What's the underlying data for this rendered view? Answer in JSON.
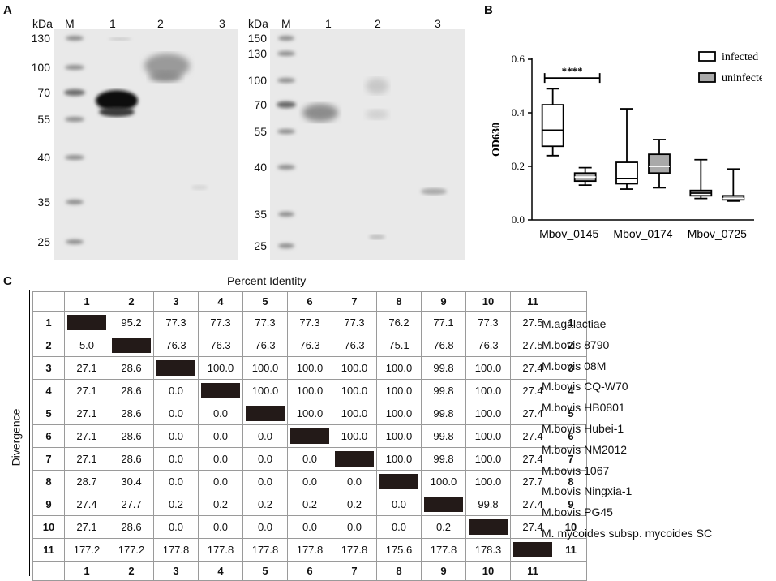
{
  "panels": {
    "a": "A",
    "b": "B",
    "c": "C"
  },
  "blot_left": {
    "unit": "kDa",
    "lanes": [
      "M",
      "1",
      "2",
      "3"
    ],
    "markers": [
      "130",
      "100",
      "70",
      "55",
      "40",
      "35",
      "25"
    ]
  },
  "blot_right": {
    "unit": "kDa",
    "lanes": [
      "M",
      "1",
      "2",
      "3"
    ],
    "markers": [
      "150",
      "130",
      "100",
      "70",
      "55",
      "40",
      "35",
      "25"
    ]
  },
  "chart_data": {
    "type": "box",
    "ylabel": "OD630",
    "ylim": [
      0,
      0.6
    ],
    "yticks": [
      "0.0",
      "0.2",
      "0.4",
      "0.6"
    ],
    "categories": [
      "Mbov_0145",
      "Mbov_0174",
      "Mbov_0725"
    ],
    "legend_position": "top-right",
    "series": [
      {
        "name": "infected",
        "color": "#ffffff",
        "boxes": [
          {
            "min": 0.24,
            "q1": 0.275,
            "median": 0.335,
            "q3": 0.43,
            "max": 0.49
          },
          {
            "min": 0.115,
            "q1": 0.135,
            "median": 0.155,
            "q3": 0.215,
            "max": 0.415
          },
          {
            "min": 0.08,
            "q1": 0.09,
            "median": 0.1,
            "q3": 0.11,
            "max": 0.225
          }
        ]
      },
      {
        "name": "uninfected",
        "color": "#a9a9a9",
        "boxes": [
          {
            "min": 0.13,
            "q1": 0.145,
            "median": 0.16,
            "q3": 0.175,
            "max": 0.195
          },
          {
            "min": 0.12,
            "q1": 0.175,
            "median": 0.2,
            "q3": 0.245,
            "max": 0.3
          },
          {
            "min": 0.07,
            "q1": 0.075,
            "median": 0.08,
            "q3": 0.09,
            "max": 0.19
          }
        ]
      }
    ],
    "annotations": [
      {
        "text": "****",
        "between": [
          "Mbov_0145 infected",
          "Mbov_0145 uninfected"
        ]
      }
    ]
  },
  "identity": {
    "title": "Percent Identity",
    "side_title": "Divergence",
    "columns": [
      "1",
      "2",
      "3",
      "4",
      "5",
      "6",
      "7",
      "8",
      "9",
      "10",
      "11"
    ],
    "rows": [
      {
        "n": "1",
        "vals": [
          "",
          "95.2",
          "77.3",
          "77.3",
          "77.3",
          "77.3",
          "77.3",
          "76.2",
          "77.1",
          "77.3",
          "27.5"
        ],
        "name": "M.agalactiae"
      },
      {
        "n": "2",
        "vals": [
          "5.0",
          "",
          "76.3",
          "76.3",
          "76.3",
          "76.3",
          "76.3",
          "75.1",
          "76.8",
          "76.3",
          "27.5"
        ],
        "name": "M.bovis 8790"
      },
      {
        "n": "3",
        "vals": [
          "27.1",
          "28.6",
          "",
          "100.0",
          "100.0",
          "100.0",
          "100.0",
          "100.0",
          "99.8",
          "100.0",
          "27.4"
        ],
        "name": "M.bovis 08M"
      },
      {
        "n": "4",
        "vals": [
          "27.1",
          "28.6",
          "0.0",
          "",
          "100.0",
          "100.0",
          "100.0",
          "100.0",
          "99.8",
          "100.0",
          "27.4"
        ],
        "name": "M.bovis CQ-W70"
      },
      {
        "n": "5",
        "vals": [
          "27.1",
          "28.6",
          "0.0",
          "0.0",
          "",
          "100.0",
          "100.0",
          "100.0",
          "99.8",
          "100.0",
          "27.4"
        ],
        "name": "M.bovis HB0801"
      },
      {
        "n": "6",
        "vals": [
          "27.1",
          "28.6",
          "0.0",
          "0.0",
          "0.0",
          "",
          "100.0",
          "100.0",
          "99.8",
          "100.0",
          "27.4"
        ],
        "name": "M.bovis Hubei-1"
      },
      {
        "n": "7",
        "vals": [
          "27.1",
          "28.6",
          "0.0",
          "0.0",
          "0.0",
          "0.0",
          "",
          "100.0",
          "99.8",
          "100.0",
          "27.4"
        ],
        "name": "M.bovis NM2012"
      },
      {
        "n": "8",
        "vals": [
          "28.7",
          "30.4",
          "0.0",
          "0.0",
          "0.0",
          "0.0",
          "0.0",
          "",
          "100.0",
          "100.0",
          "27.7"
        ],
        "name": "M.bovis 1067"
      },
      {
        "n": "9",
        "vals": [
          "27.4",
          "27.7",
          "0.2",
          "0.2",
          "0.2",
          "0.2",
          "0.2",
          "0.0",
          "",
          "99.8",
          "27.4"
        ],
        "name": "M.bovis Ningxia-1"
      },
      {
        "n": "10",
        "vals": [
          "27.1",
          "28.6",
          "0.0",
          "0.0",
          "0.0",
          "0.0",
          "0.0",
          "0.0",
          "0.2",
          "",
          "27.4"
        ],
        "name": "M.bovis PG45"
      },
      {
        "n": "11",
        "vals": [
          "177.2",
          "177.2",
          "177.8",
          "177.8",
          "177.8",
          "177.8",
          "177.8",
          "175.6",
          "177.8",
          "178.3",
          ""
        ],
        "name": "M. mycoides subsp. mycoides SC"
      }
    ]
  }
}
